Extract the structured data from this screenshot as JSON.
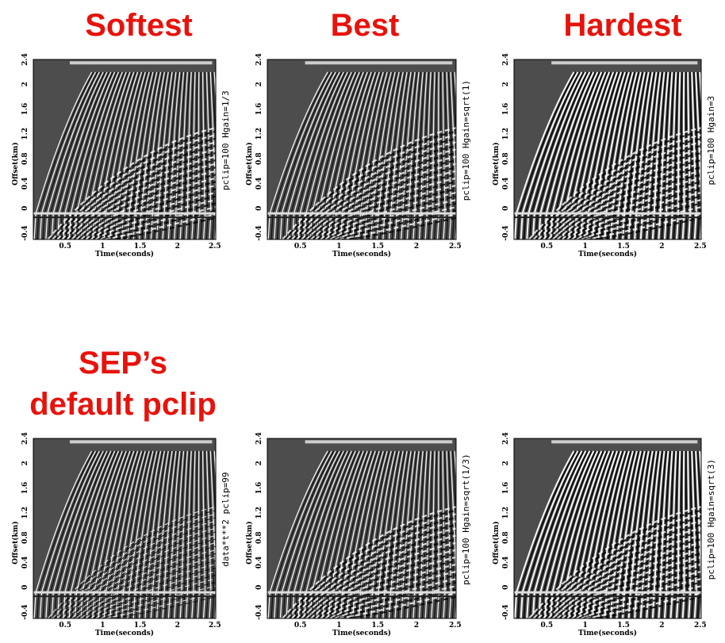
{
  "panels": [
    {
      "title": [
        "Softest"
      ],
      "side_label": "pclip=100  Hgain=1/3"
    },
    {
      "title": [
        "Best"
      ],
      "side_label": "pclip=100  Hgain=sqrt(1)"
    },
    {
      "title": [
        "Hardest"
      ],
      "side_label": "pclip=100  Hgain=3"
    },
    {
      "title": [
        "SEP’s",
        "default pclip"
      ],
      "side_label": "data*t**2  pclip=99"
    },
    {
      "side_label": "pclip=100  Hgain=sqrt(1/3)"
    },
    {
      "side_label": "pclip=100  Hgain=sqrt(3)"
    }
  ],
  "axis": {
    "ylabel": "Offset(km)",
    "xlabel": "Time(seconds)",
    "yticks": [
      "2.4",
      "2",
      "1.6",
      "1.2",
      "0.8",
      "0.4",
      "0",
      "-0.4"
    ],
    "xticks": [
      "0.5",
      "1",
      "1.5",
      "2",
      "2.5"
    ]
  }
}
